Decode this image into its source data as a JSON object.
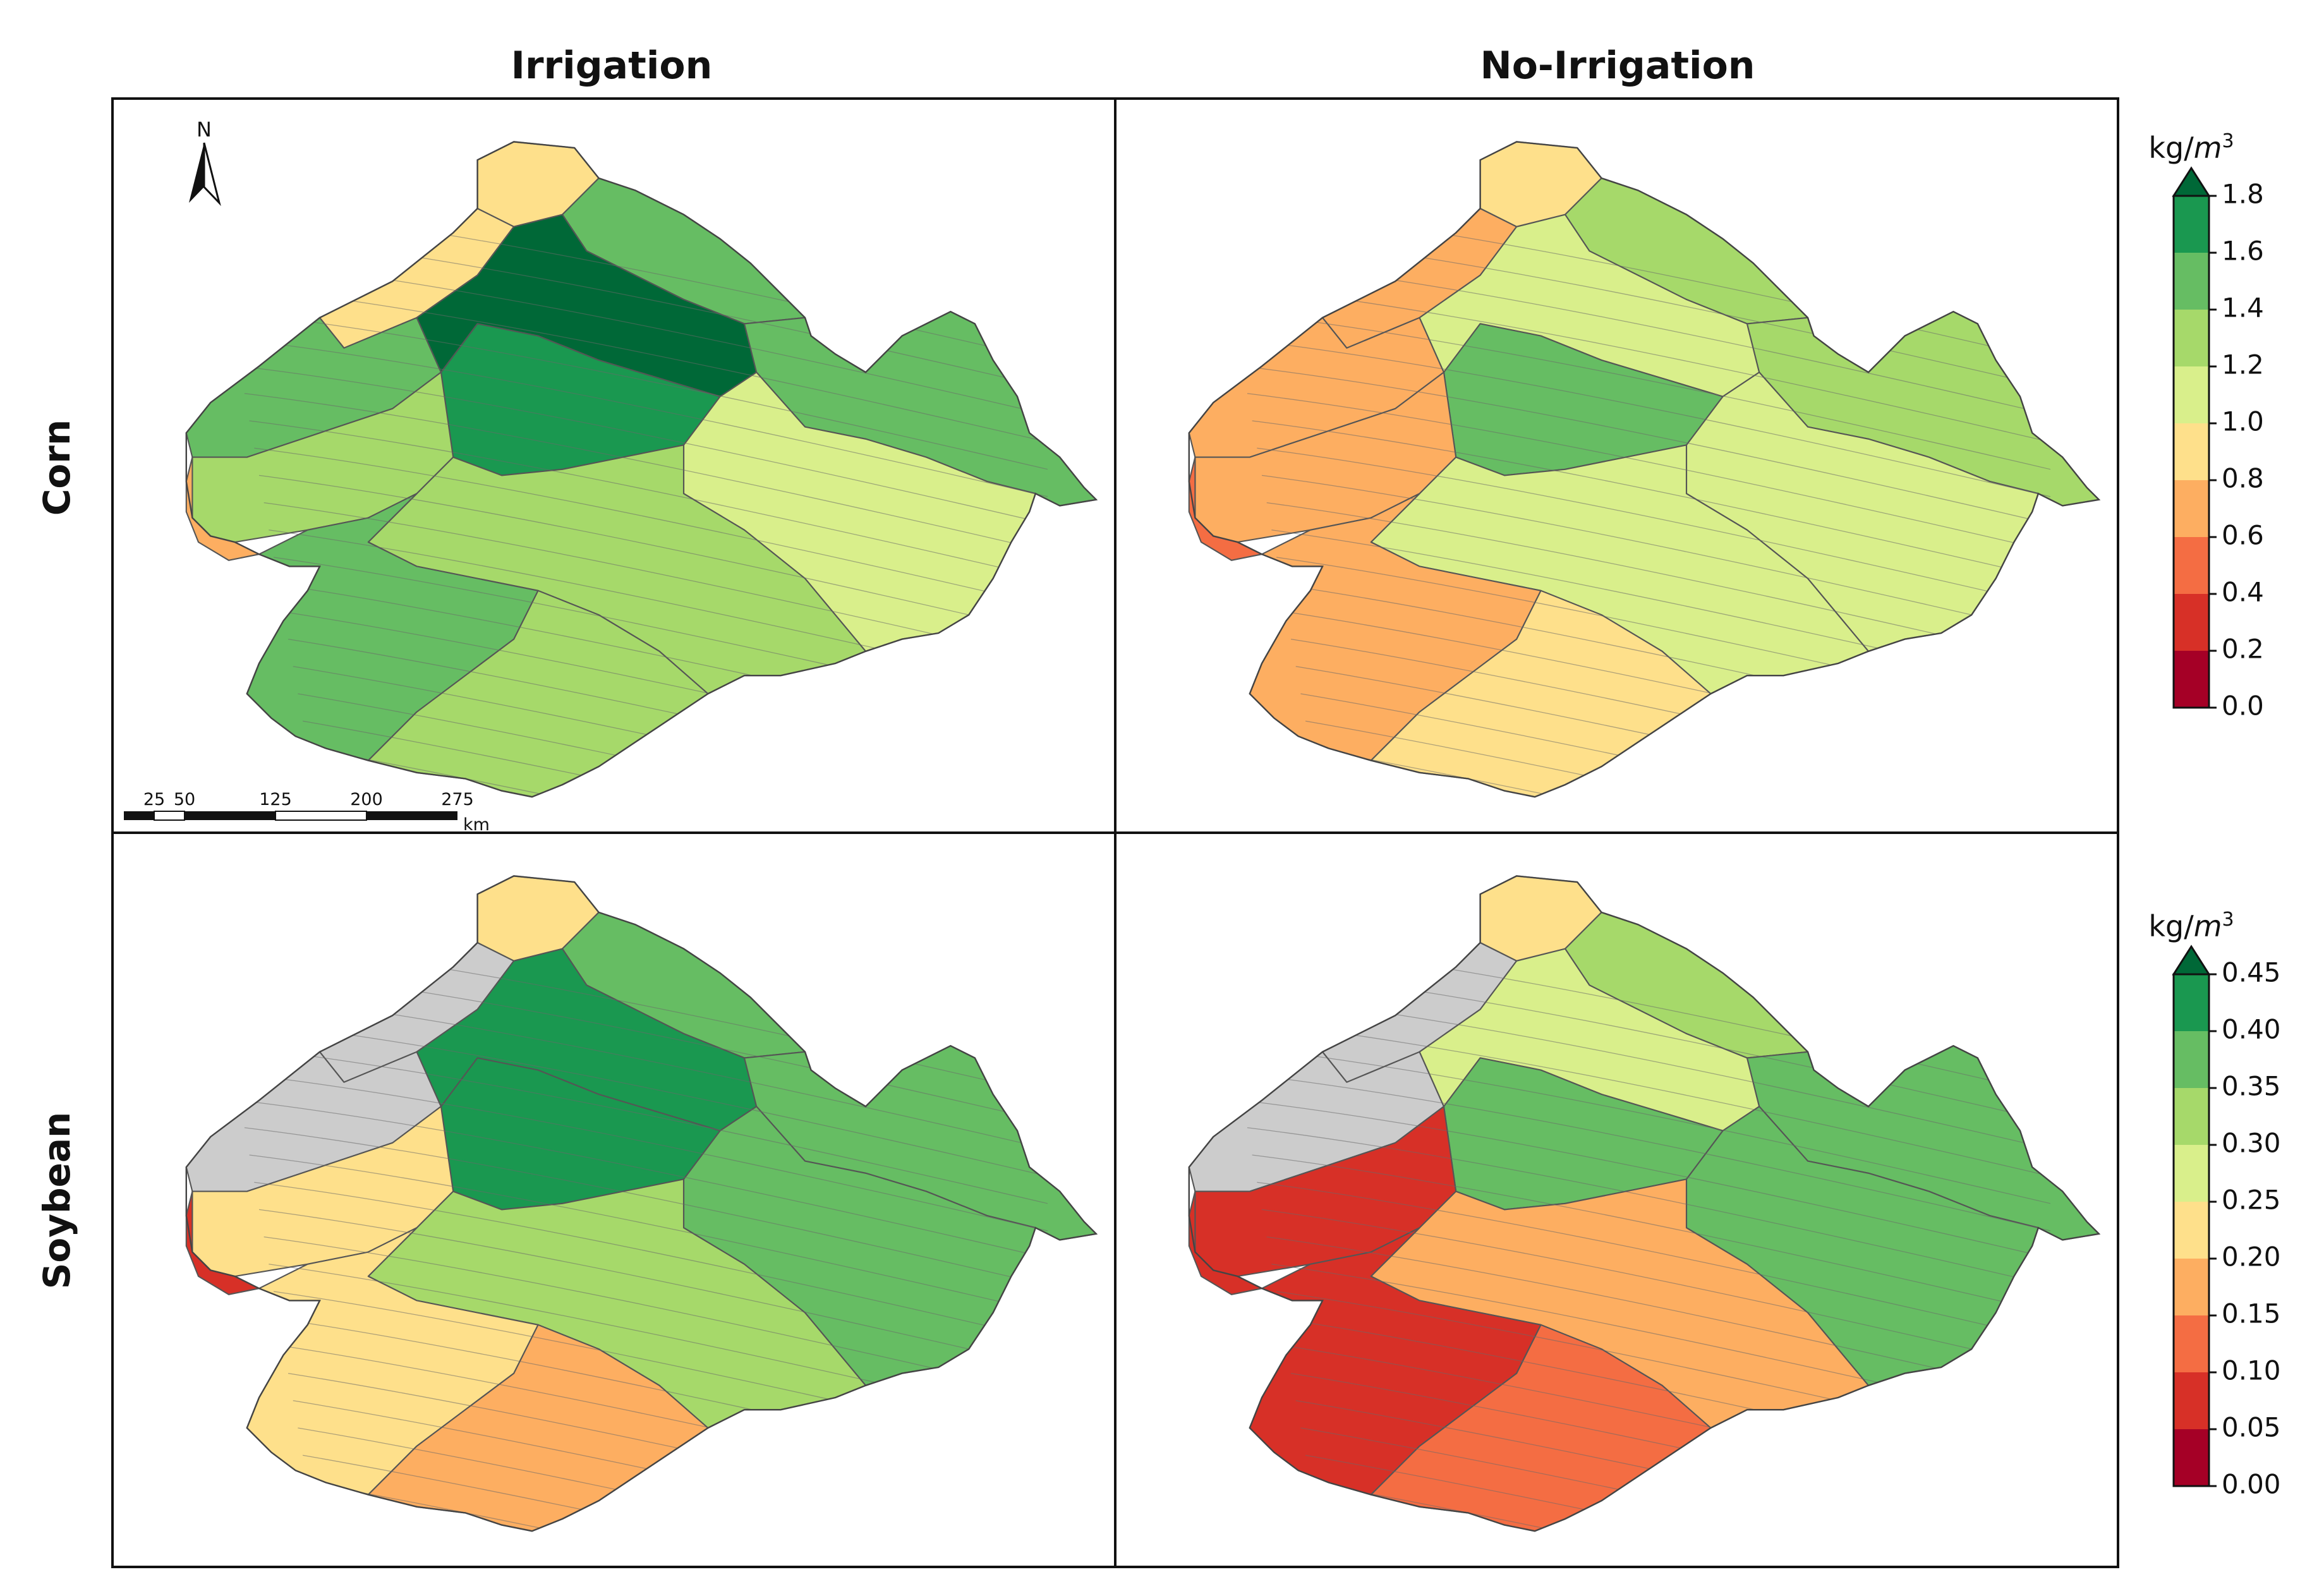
{
  "columns": [
    "Irrigation",
    "No-Irrigation"
  ],
  "rows": [
    "Corn",
    "Soybean"
  ],
  "colorbars": [
    {
      "unit_base": "kg/",
      "unit_var": "m",
      "unit_exp": "3",
      "ticks": [
        "1.8",
        "1.6",
        "1.4",
        "1.2",
        "1.0",
        "0.8",
        "0.6",
        "0.4",
        "0.2",
        "0.0"
      ],
      "colors": [
        "#1a9850",
        "#66bd63",
        "#a6d96a",
        "#d9ef8b",
        "#fee08b",
        "#fdae61",
        "#f46d43",
        "#d73027",
        "#a50026"
      ],
      "extend_color": "#006837"
    },
    {
      "unit_base": "kg/",
      "unit_var": "m",
      "unit_exp": "3",
      "ticks": [
        "0.45",
        "0.40",
        "0.35",
        "0.30",
        "0.25",
        "0.20",
        "0.15",
        "0.10",
        "0.05",
        "0.00"
      ],
      "colors": [
        "#1a9850",
        "#66bd63",
        "#a6d96a",
        "#d9ef8b",
        "#fee08b",
        "#fdae61",
        "#f46d43",
        "#d73027",
        "#a50026"
      ],
      "extend_color": "#006837"
    }
  ],
  "scale_bar": {
    "labels": [
      "25",
      "50",
      "125",
      "200",
      "275"
    ],
    "unit": "km"
  },
  "north_arrow": {
    "label": "N"
  },
  "nodata_color": "#cccccc",
  "panels": [
    {
      "id": "corn-irrigation",
      "regions": [
        {
          "name": "north-tip",
          "color": "#fee08b"
        },
        {
          "name": "northeast",
          "color": "#66bd63"
        },
        {
          "name": "northwest",
          "color": "#fee08b"
        },
        {
          "name": "west-upper",
          "color": "#66bd63"
        },
        {
          "name": "central-north",
          "color": "#006837"
        },
        {
          "name": "central-mid",
          "color": "#1a9850"
        },
        {
          "name": "west-lower",
          "color": "#a6d96a"
        },
        {
          "name": "west-edge",
          "color": "#fdae61"
        },
        {
          "name": "east-upper",
          "color": "#66bd63"
        },
        {
          "name": "east-lower",
          "color": "#d9ef8b"
        },
        {
          "name": "south-central",
          "color": "#a6d96a"
        },
        {
          "name": "southwest",
          "color": "#66bd63"
        },
        {
          "name": "south-tail",
          "color": "#a6d96a"
        }
      ]
    },
    {
      "id": "corn-no-irrigation",
      "regions": [
        {
          "name": "north-tip",
          "color": "#fee08b"
        },
        {
          "name": "northeast",
          "color": "#a6d96a"
        },
        {
          "name": "northwest",
          "color": "#fdae61"
        },
        {
          "name": "west-upper",
          "color": "#fdae61"
        },
        {
          "name": "central-north",
          "color": "#d9ef8b"
        },
        {
          "name": "central-mid",
          "color": "#66bd63"
        },
        {
          "name": "west-lower",
          "color": "#fdae61"
        },
        {
          "name": "west-edge",
          "color": "#f46d43"
        },
        {
          "name": "east-upper",
          "color": "#a6d96a"
        },
        {
          "name": "east-lower",
          "color": "#d9ef8b"
        },
        {
          "name": "south-central",
          "color": "#d9ef8b"
        },
        {
          "name": "southwest",
          "color": "#fdae61"
        },
        {
          "name": "south-tail",
          "color": "#fee08b"
        }
      ]
    },
    {
      "id": "soybean-irrigation",
      "regions": [
        {
          "name": "north-tip",
          "color": "#fee08b"
        },
        {
          "name": "northeast",
          "color": "#66bd63"
        },
        {
          "name": "northwest",
          "color": "#cccccc"
        },
        {
          "name": "west-upper",
          "color": "#cccccc"
        },
        {
          "name": "central-north",
          "color": "#1a9850"
        },
        {
          "name": "central-mid",
          "color": "#1a9850"
        },
        {
          "name": "west-lower",
          "color": "#fee08b"
        },
        {
          "name": "west-edge",
          "color": "#d73027"
        },
        {
          "name": "east-upper",
          "color": "#66bd63"
        },
        {
          "name": "east-lower",
          "color": "#66bd63"
        },
        {
          "name": "south-central",
          "color": "#a6d96a"
        },
        {
          "name": "southwest",
          "color": "#fee08b"
        },
        {
          "name": "south-tail",
          "color": "#fdae61"
        }
      ]
    },
    {
      "id": "soybean-no-irrigation",
      "regions": [
        {
          "name": "north-tip",
          "color": "#fee08b"
        },
        {
          "name": "northeast",
          "color": "#a6d96a"
        },
        {
          "name": "northwest",
          "color": "#cccccc"
        },
        {
          "name": "west-upper",
          "color": "#cccccc"
        },
        {
          "name": "central-north",
          "color": "#d9ef8b"
        },
        {
          "name": "central-mid",
          "color": "#66bd63"
        },
        {
          "name": "west-lower",
          "color": "#d73027"
        },
        {
          "name": "west-edge",
          "color": "#d73027"
        },
        {
          "name": "east-upper",
          "color": "#66bd63"
        },
        {
          "name": "east-lower",
          "color": "#66bd63"
        },
        {
          "name": "south-central",
          "color": "#fdae61"
        },
        {
          "name": "southwest",
          "color": "#d73027"
        },
        {
          "name": "south-tail",
          "color": "#f46d43"
        }
      ]
    }
  ]
}
